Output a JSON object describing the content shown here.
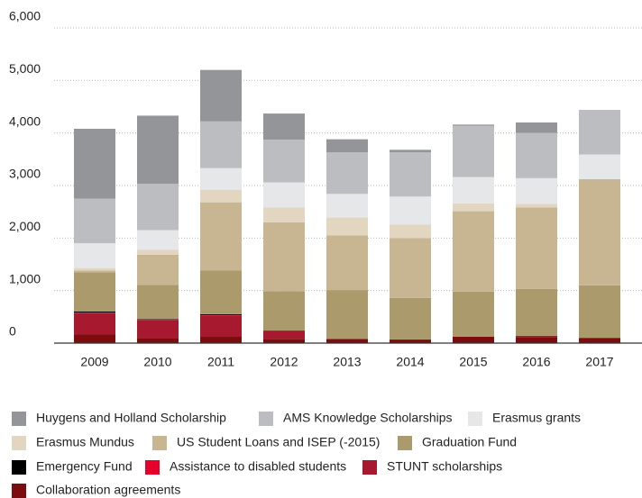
{
  "chart_data": {
    "type": "stacked_bar",
    "categories": [
      "2009",
      "2010",
      "2011",
      "2012",
      "2013",
      "2014",
      "2015",
      "2016",
      "2017"
    ],
    "series": [
      {
        "name": "Huygens and Holland Scholarship",
        "color": "#939598",
        "values": [
          1330,
          1300,
          980,
          500,
          250,
          50,
          20,
          200,
          0
        ]
      },
      {
        "name": "AMS Knowledge Scholarships",
        "color": "#bcbdc0",
        "values": [
          850,
          880,
          890,
          810,
          790,
          840,
          980,
          860,
          850
        ]
      },
      {
        "name": "Erasmus grants",
        "color": "#e6e7e8",
        "values": [
          470,
          370,
          410,
          480,
          450,
          530,
          500,
          490,
          470
        ]
      },
      {
        "name": "Erasmus Mundus",
        "color": "#e3d6c1",
        "values": [
          50,
          100,
          240,
          280,
          340,
          260,
          150,
          70,
          0
        ]
      },
      {
        "name": "US Student Loans and ISEP (-2015)",
        "color": "#c8b692",
        "values": [
          30,
          570,
          1300,
          1310,
          1040,
          1140,
          1530,
          1550,
          2020
        ]
      },
      {
        "name": "Graduation Fund",
        "color": "#ab9a6c",
        "values": [
          750,
          650,
          830,
          750,
          930,
          790,
          860,
          890,
          1000
        ]
      },
      {
        "name": "Emergency Fund",
        "color": "#000000",
        "values": [
          20,
          10,
          20,
          0,
          0,
          0,
          0,
          0,
          0
        ]
      },
      {
        "name": "Assistance to disabled students",
        "color": "#e4002b",
        "values": [
          10,
          10,
          10,
          10,
          0,
          0,
          0,
          0,
          0
        ]
      },
      {
        "name": "STUNT scholarships",
        "color": "#a6192e",
        "values": [
          400,
          340,
          400,
          150,
          0,
          10,
          0,
          30,
          0
        ]
      },
      {
        "name": "Collaboration agreements",
        "color": "#7d0c0e",
        "values": [
          170,
          100,
          120,
          80,
          80,
          60,
          120,
          110,
          100
        ]
      }
    ],
    "ylim": [
      0,
      6000
    ],
    "yticks": [
      0,
      {
        "value": 1000,
        "label": "1,000"
      },
      {
        "value": 2000,
        "label": "2,000"
      },
      {
        "value": 3000,
        "label": "3,000"
      },
      {
        "value": 4000,
        "label": "4,000"
      },
      {
        "value": 5000,
        "label": "5,000"
      },
      {
        "value": 6000,
        "label": "6,000"
      }
    ],
    "grid": true
  }
}
